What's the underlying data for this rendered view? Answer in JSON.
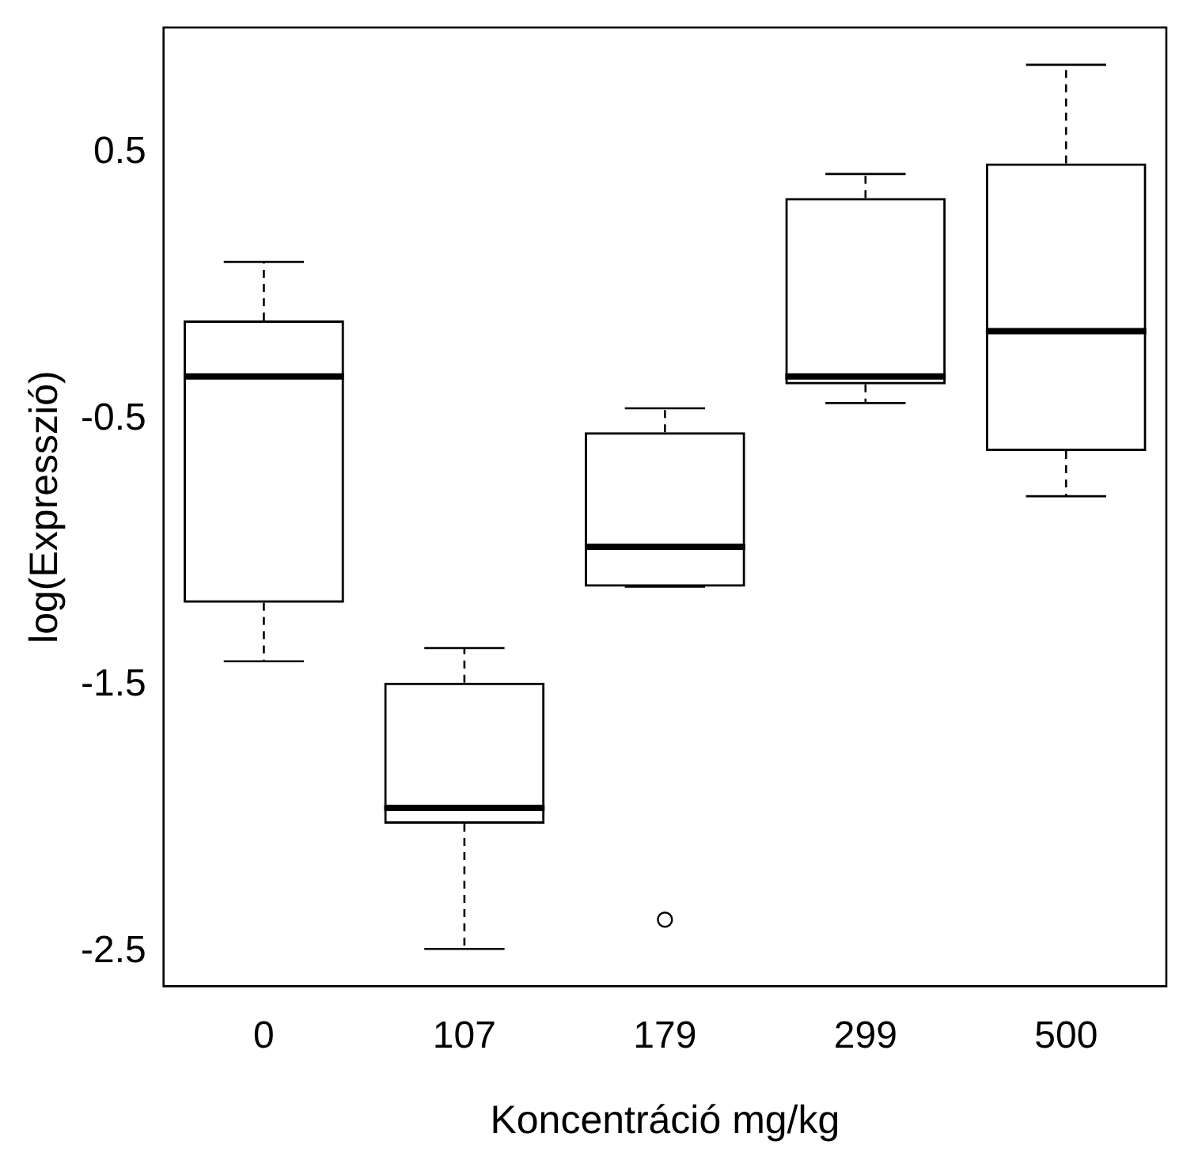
{
  "chart_data": {
    "type": "box",
    "xlabel": "Koncentráció mg/kg",
    "ylabel": "log(Expresszió)",
    "categories": [
      "0",
      "107",
      "179",
      "299",
      "500"
    ],
    "boxes": [
      {
        "low": -1.41,
        "q1": -1.19,
        "median": -0.34,
        "q3": -0.13,
        "high": 0.09
      },
      {
        "low": -2.49,
        "q1": -2.02,
        "median": -1.96,
        "q3": -1.49,
        "high": -1.36
      },
      {
        "low": -1.13,
        "q1": -1.13,
        "median": -0.98,
        "q3": -0.55,
        "high": -0.46,
        "outliers": [
          -2.38
        ]
      },
      {
        "low": -0.44,
        "q1": -0.37,
        "median": -0.34,
        "q3": 0.33,
        "high": 0.42
      },
      {
        "low": -0.79,
        "q1": -0.62,
        "median": -0.17,
        "q3": 0.46,
        "high": 0.83
      }
    ],
    "ylim": [
      -2.63,
      0.97
    ],
    "yticks": [
      -2.5,
      -1.5,
      -0.5,
      0.5
    ],
    "grid": false,
    "legend": false
  }
}
